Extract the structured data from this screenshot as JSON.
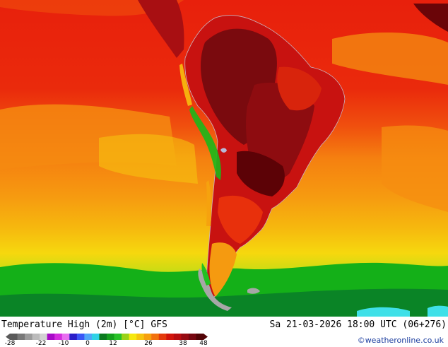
{
  "map": {
    "region": "South America",
    "colors": {
      "ocean_orange": "#f58e12",
      "ocean_red": "#e5140c",
      "yellow": "#f6d00d",
      "green": "#10b515",
      "dark_green": "#087a2a",
      "cyan": "#3fe0e8",
      "land_darkred": "#8a0f10",
      "land_maroon": "#5c0206",
      "gray": "#a7a7a7",
      "border": "#c8b4c0"
    }
  },
  "footer": {
    "title": "Temperature High (2m) [°C] GFS",
    "valid_time": "Sa 21-03-2026 18:00 UTC (06+276)",
    "credit": "©weatheronline.co.uk"
  },
  "legend": {
    "ticks": [
      "-28",
      "-22",
      "-10",
      "0",
      "12",
      "26",
      "38",
      "48"
    ],
    "colors": [
      "#5a5a5a",
      "#787878",
      "#9b9b9b",
      "#bbbbbb",
      "#d2d2d2",
      "#a80ac8",
      "#d42cde",
      "#e86ef0",
      "#2a1ec8",
      "#3a56f6",
      "#50a6f8",
      "#30d2e6",
      "#0a7a1e",
      "#14a01c",
      "#28c228",
      "#9ad218",
      "#f6e80e",
      "#f6c40e",
      "#f6a00e",
      "#f2720e",
      "#e43a0c",
      "#d2140c",
      "#b80c10",
      "#960a12",
      "#760610",
      "#520306"
    ]
  }
}
